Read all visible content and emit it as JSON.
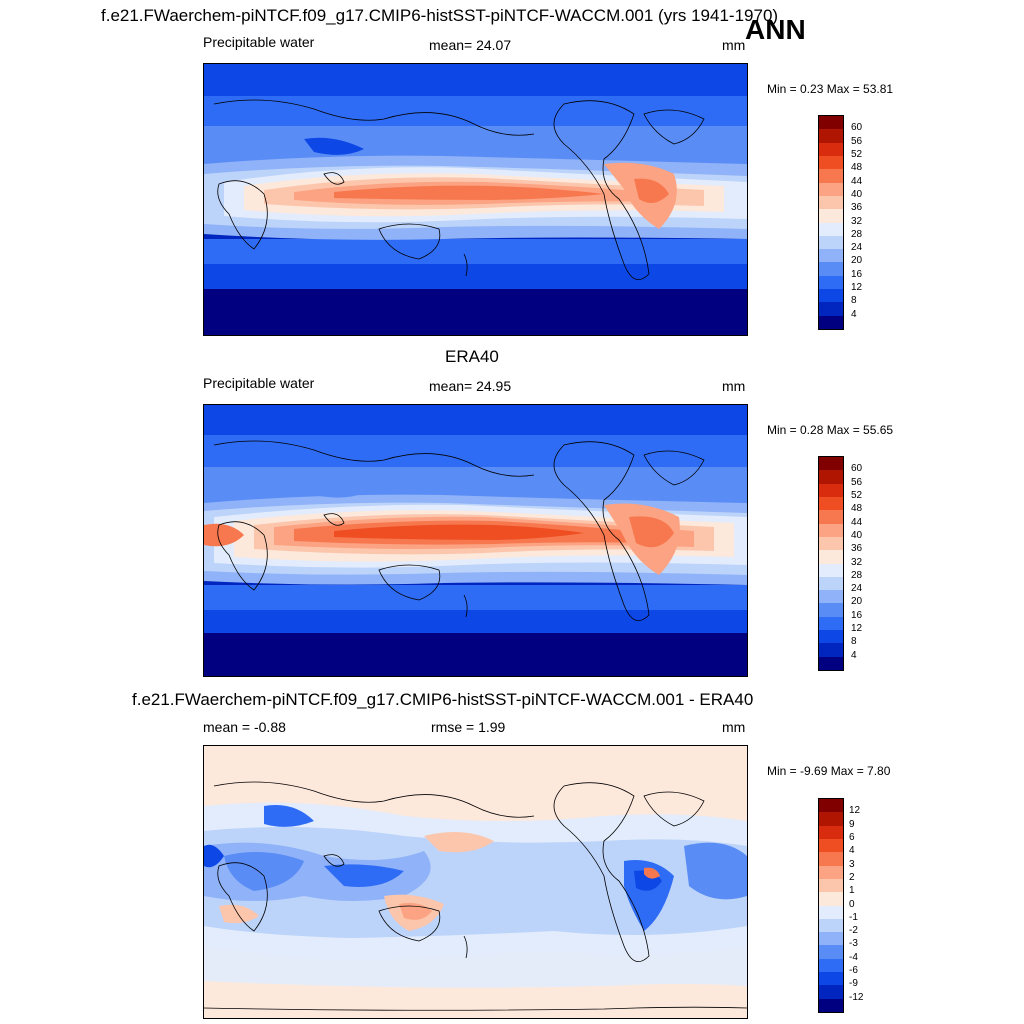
{
  "header": {
    "title": "f.e21.FWaerchem-piNTCF.f09_g17.CMIP6-histSST-piNTCF-WACCM.001 (yrs 1941-1970)",
    "season": "ANN"
  },
  "panels": [
    {
      "id": "model",
      "top_title": "",
      "left_label": "Precipitable water",
      "center_label": "mean=  24.07",
      "right_label": "mm",
      "minmax": "Min =   0.23 Max =  53.81",
      "colorbar": {
        "colors": [
          "#000080",
          "#0026bf",
          "#0d47e6",
          "#2f6cf5",
          "#5a8cf6",
          "#8fb2f8",
          "#bcd3fa",
          "#e2ecfc",
          "#fde8dc",
          "#fcc6ad",
          "#fba382",
          "#f7784e",
          "#ef4d22",
          "#d92b0d",
          "#b01502",
          "#800000"
        ],
        "ticks": [
          "4",
          "8",
          "12",
          "16",
          "20",
          "24",
          "28",
          "32",
          "36",
          "40",
          "44",
          "48",
          "52",
          "56",
          "60"
        ]
      }
    },
    {
      "id": "obs",
      "top_title": "ERA40",
      "left_label": "Precipitable water",
      "center_label": "mean=  24.95",
      "right_label": "mm",
      "minmax": "Min =   0.28 Max =  55.65",
      "colorbar": {
        "colors": [
          "#000080",
          "#0026bf",
          "#0d47e6",
          "#2f6cf5",
          "#5a8cf6",
          "#8fb2f8",
          "#bcd3fa",
          "#e2ecfc",
          "#fde8dc",
          "#fcc6ad",
          "#fba382",
          "#f7784e",
          "#ef4d22",
          "#d92b0d",
          "#b01502",
          "#800000"
        ],
        "ticks": [
          "4",
          "8",
          "12",
          "16",
          "20",
          "24",
          "28",
          "32",
          "36",
          "40",
          "44",
          "48",
          "52",
          "56",
          "60"
        ]
      }
    },
    {
      "id": "diff",
      "top_title": "f.e21.FWaerchem-piNTCF.f09_g17.CMIP6-histSST-piNTCF-WACCM.001 - ERA40",
      "left_label": "mean =  -0.88",
      "center_label": "rmse =    1.99",
      "right_label": "mm",
      "minmax": "Min =  -9.69 Max =   7.80",
      "colorbar": {
        "colors": [
          "#000080",
          "#0026bf",
          "#0d47e6",
          "#2f6cf5",
          "#5a8cf6",
          "#8fb2f8",
          "#bcd3fa",
          "#e2ecfc",
          "#fde8dc",
          "#fcc6ad",
          "#fba382",
          "#f7784e",
          "#ef4d22",
          "#d92b0d",
          "#b01502",
          "#800000"
        ],
        "ticks": [
          "-12",
          "-9",
          "-6",
          "-4",
          "-3",
          "-2",
          "-1",
          "0",
          "1",
          "2",
          "3",
          "4",
          "6",
          "9",
          "12"
        ]
      }
    }
  ]
}
